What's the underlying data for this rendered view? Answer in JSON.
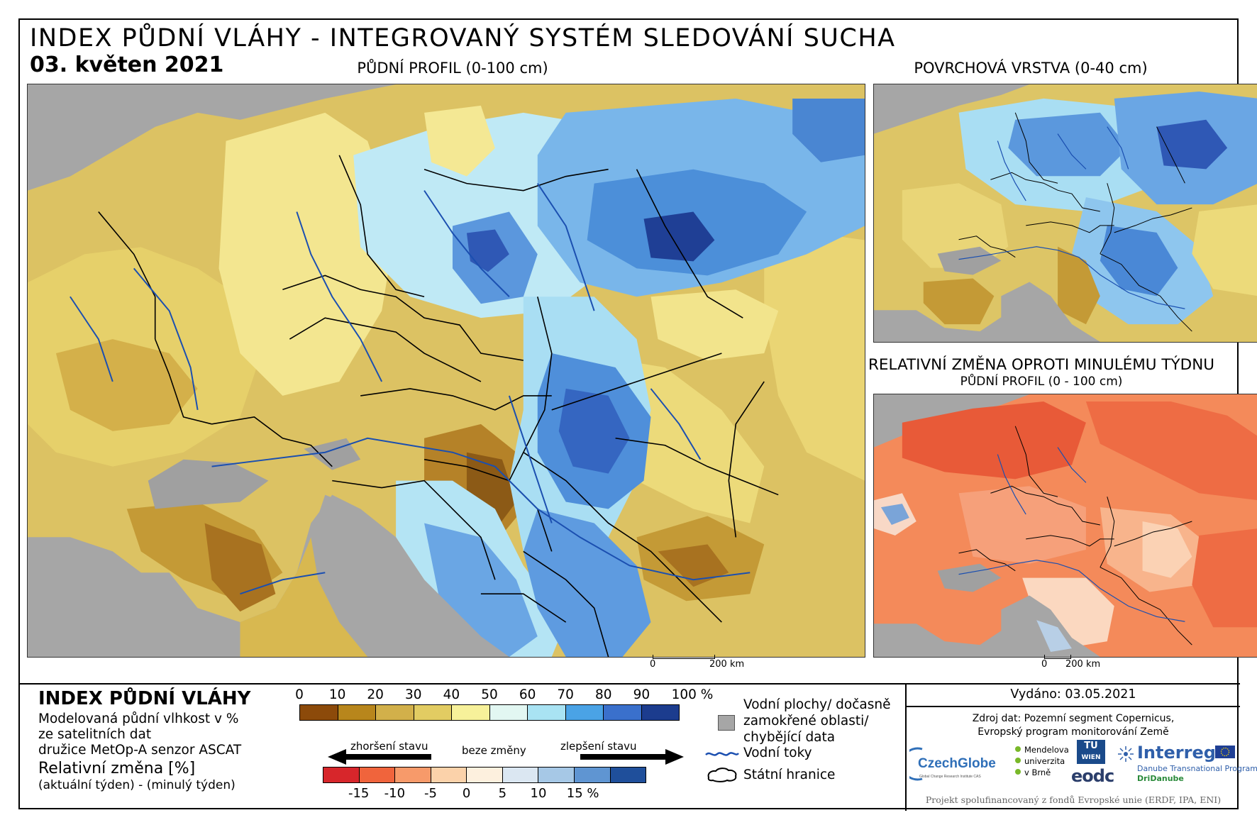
{
  "header": {
    "title": "INDEX PŮDNÍ VLÁHY - INTEGROVANÝ SYSTÉM SLEDOVÁNÍ SUCHA",
    "date": "03. květen 2021"
  },
  "maps": {
    "main_label": "PŮDNÍ PROFIL (0-100 cm)",
    "surface_label": "POVRCHOVÁ VRSTVA (0-40 cm)",
    "change_label": "RELATIVNÍ ZMĚNA OPROTI MINULÉMU TÝDNU",
    "change_sublabel": "PŮDNÍ PROFIL (0 - 100 cm)",
    "scalebar_zero": "0",
    "scalebar_distance": "200 km"
  },
  "legend": {
    "title": "INDEX PŮDNÍ VLÁHY",
    "line1": "Modelovaná půdní vlhkost v %",
    "line2": "ze satelitních dat",
    "line3": "družice MetOp-A senzor ASCAT",
    "relative_title": "Relativní změna [%]",
    "relative_sub": "(aktuální týden) - (minulý týden)",
    "index_ticks": [
      "0",
      "10",
      "20",
      "30",
      "40",
      "50",
      "60",
      "70",
      "80",
      "90",
      "100 %"
    ],
    "index_colors": [
      "#8c4a0a",
      "#b8861c",
      "#d2b04a",
      "#e2cc62",
      "#f7f19a",
      "#e2f7f2",
      "#a9e3f3",
      "#4aa3e6",
      "#3a70cc",
      "#1c3c8e"
    ],
    "worse_label": "zhoršení stavu",
    "nochange_label": "beze změny",
    "better_label": "zlepšení stavu",
    "change_ticks": [
      "-15",
      "-10",
      "-5",
      "0",
      "5",
      "10",
      "15 %"
    ],
    "change_colors": [
      "#d7262b",
      "#f0643c",
      "#f79a6a",
      "#fbd2aa",
      "#fdf0de",
      "#dbe7f2",
      "#a6c8e6",
      "#5f95d2",
      "#1f4f9b"
    ],
    "water_line1": "Vodní plochy/ dočasně",
    "water_line2": "zamokřené oblasti/",
    "water_line3": "chybějící data",
    "rivers_label": "Vodní toky",
    "borders_label": "Státní hranice"
  },
  "info": {
    "issued": "Vydáno: 03.05.2021",
    "source1": "Zdroj dat: Pozemní segment Copernicus,",
    "source2": "Evropský program monitorování Země",
    "funded": "Projekt spolufinancovaný z fondů Evropské unie (ERDF, IPA, ENI)"
  },
  "logos": {
    "czechglobe": "CzechGlobe",
    "czechglobe_sub": "Global Change Research Institute CAS",
    "mendel": [
      "Mendelova",
      "univerzita",
      "v Brně"
    ],
    "tuwien": [
      "TU",
      "WIEN"
    ],
    "eodc": "eodc",
    "interreg": "Interreg",
    "interreg_line1": "Danube Transnational Programme",
    "interreg_line2": "DriDanube"
  }
}
